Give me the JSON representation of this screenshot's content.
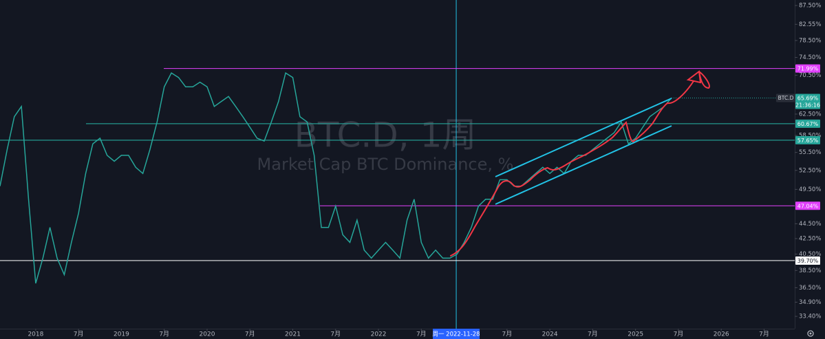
{
  "chart_data": {
    "type": "line",
    "title": "BTC.D, 1周",
    "subtitle": "Market Cap BTC Dominance, %",
    "log_scale": true,
    "grid": false,
    "x": [
      "2017-08",
      "2017-09",
      "2017-10",
      "2017-11",
      "2017-12",
      "2018-01",
      "2018-02",
      "2018-03",
      "2018-04",
      "2018-05",
      "2018-06",
      "2018-07",
      "2018-08",
      "2018-09",
      "2018-10",
      "2018-11",
      "2018-12",
      "2019-01",
      "2019-02",
      "2019-03",
      "2019-04",
      "2019-05",
      "2019-06",
      "2019-07",
      "2019-08",
      "2019-09",
      "2019-10",
      "2019-11",
      "2019-12",
      "2020-01",
      "2020-02",
      "2020-03",
      "2020-04",
      "2020-05",
      "2020-06",
      "2020-07",
      "2020-08",
      "2020-09",
      "2020-10",
      "2020-11",
      "2020-12",
      "2021-01",
      "2021-02",
      "2021-03",
      "2021-04",
      "2021-05",
      "2021-06",
      "2021-07",
      "2021-08",
      "2021-09",
      "2021-10",
      "2021-11",
      "2021-12",
      "2022-01",
      "2022-02",
      "2022-03",
      "2022-04",
      "2022-05",
      "2022-06",
      "2022-07",
      "2022-08",
      "2022-09",
      "2022-10",
      "2022-11",
      "2022-12",
      "2023-01",
      "2023-02",
      "2023-03",
      "2023-04",
      "2023-05",
      "2023-06",
      "2023-07",
      "2023-08",
      "2023-09",
      "2023-10",
      "2023-11",
      "2023-12",
      "2024-01",
      "2024-02",
      "2024-03",
      "2024-04",
      "2024-05",
      "2024-06",
      "2024-07",
      "2024-08",
      "2024-09",
      "2024-10",
      "2024-11",
      "2024-12",
      "2025-01",
      "2025-02",
      "2025-03",
      "2025-04",
      "2025-05",
      "2025-06"
    ],
    "series": [
      {
        "name": "BTC.D",
        "color": "#26a69a",
        "values": [
          50,
          56,
          62,
          64,
          48,
          37,
          40,
          44,
          40,
          38,
          42,
          46,
          52,
          57,
          58,
          55,
          54,
          55,
          55,
          53,
          52,
          56,
          61,
          68,
          71,
          70,
          68,
          68,
          69,
          68,
          64,
          65,
          66,
          64,
          62,
          60,
          58,
          57.5,
          61,
          65,
          71,
          70,
          62,
          61,
          55,
          44,
          44,
          47,
          43,
          42,
          45,
          41,
          40,
          41,
          42,
          41,
          40,
          45,
          48,
          42,
          40,
          41,
          40,
          40,
          40.5,
          42,
          44,
          47,
          48,
          48,
          51,
          51,
          50,
          50,
          51,
          52,
          53,
          52,
          53,
          52,
          54,
          55,
          55,
          56,
          57,
          58,
          59,
          61,
          57,
          58,
          60,
          62,
          63,
          64,
          65.69
        ]
      }
    ],
    "xlim": [
      "2017-08",
      "2026-11"
    ],
    "xticks": [
      {
        "value": "2018-01",
        "label": "2018"
      },
      {
        "value": "2018-07",
        "label": "7月"
      },
      {
        "value": "2019-01",
        "label": "2019"
      },
      {
        "value": "2019-07",
        "label": "7月"
      },
      {
        "value": "2020-01",
        "label": "2020"
      },
      {
        "value": "2020-07",
        "label": "7月"
      },
      {
        "value": "2021-01",
        "label": "2021"
      },
      {
        "value": "2021-07",
        "label": "7月"
      },
      {
        "value": "2022-01",
        "label": "2022"
      },
      {
        "value": "2022-07",
        "label": "7月"
      },
      {
        "value": "2023-07",
        "label": "7月"
      },
      {
        "value": "2024-01",
        "label": "2024"
      },
      {
        "value": "2024-07",
        "label": "7月"
      },
      {
        "value": "2025-01",
        "label": "2025"
      },
      {
        "value": "2025-07",
        "label": "7月"
      },
      {
        "value": "2026-01",
        "label": "2026"
      },
      {
        "value": "2026-07",
        "label": "7月"
      }
    ],
    "crosshair": {
      "value": "2022-11-28",
      "label": "周一  2022-11-28"
    },
    "ylim": [
      32.7,
      89.0
    ],
    "yticks": [
      {
        "value": 87.5,
        "label": "87.50%"
      },
      {
        "value": 82.55,
        "label": "82.55%"
      },
      {
        "value": 78.5,
        "label": "78.50%"
      },
      {
        "value": 74.5,
        "label": "74.50%"
      },
      {
        "value": 70.5,
        "label": "70.50%"
      },
      {
        "value": 62.5,
        "label": "62.50%"
      },
      {
        "value": 58.5,
        "label": "58.50%"
      },
      {
        "value": 55.5,
        "label": "55.50%"
      },
      {
        "value": 52.5,
        "label": "52.50%"
      },
      {
        "value": 49.5,
        "label": "49.50%"
      },
      {
        "value": 44.5,
        "label": "44.50%"
      },
      {
        "value": 42.5,
        "label": "42.50%"
      },
      {
        "value": 40.5,
        "label": "40.50%"
      },
      {
        "value": 38.5,
        "label": "38.50%"
      },
      {
        "value": 36.5,
        "label": "36.50%"
      },
      {
        "value": 34.9,
        "label": "34.90%"
      },
      {
        "value": 33.4,
        "label": "33.40%"
      }
    ],
    "levels": [
      {
        "value": 71.99,
        "label": "71.99%",
        "color": "#e040fb"
      },
      {
        "value": 60.67,
        "label": "60.67%",
        "color": "#26a69a"
      },
      {
        "value": 57.65,
        "label": "57.65%",
        "color": "#26a69a"
      },
      {
        "value": 47.04,
        "label": "47.04%",
        "color": "#e040fb"
      },
      {
        "value": 39.7,
        "label": "39.70%",
        "color": "#ffffff"
      }
    ],
    "last": {
      "symbol": "BTC.D",
      "value": 65.69,
      "label": "65.69%",
      "countdown": "21:36:16",
      "color": "#26a69a"
    }
  }
}
